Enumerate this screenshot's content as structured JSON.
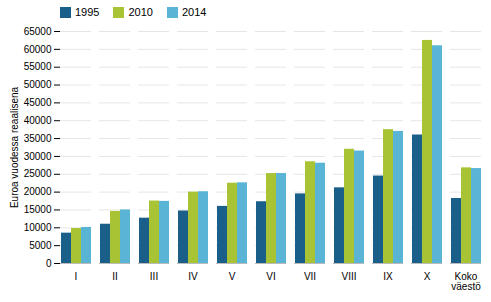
{
  "chart_data": {
    "type": "bar",
    "categories": [
      "I",
      "II",
      "III",
      "IV",
      "V",
      "VI",
      "VII",
      "VIII",
      "IX",
      "X",
      "Koko\nväestö"
    ],
    "series": [
      {
        "name": "1995",
        "color": "#1a5e8a",
        "values": [
          8500,
          11000,
          12700,
          14700,
          16000,
          17300,
          19500,
          21200,
          24500,
          36000,
          18200
        ]
      },
      {
        "name": "2010",
        "color": "#a8c435",
        "values": [
          9800,
          14600,
          17500,
          20000,
          22500,
          25200,
          28500,
          32000,
          37500,
          62500,
          26800
        ]
      },
      {
        "name": "2014",
        "color": "#5ab4d6",
        "values": [
          10100,
          15000,
          17400,
          20100,
          22600,
          25200,
          28100,
          31500,
          37000,
          61000,
          26600
        ]
      }
    ],
    "ylabel": "Euroa vuodessa reaalisena",
    "ylim": [
      0,
      65000
    ],
    "yticks": [
      0,
      5000,
      10000,
      15000,
      20000,
      25000,
      30000,
      35000,
      40000,
      45000,
      50000,
      55000,
      60000,
      65000
    ],
    "grid": true,
    "legend": "upper left"
  }
}
